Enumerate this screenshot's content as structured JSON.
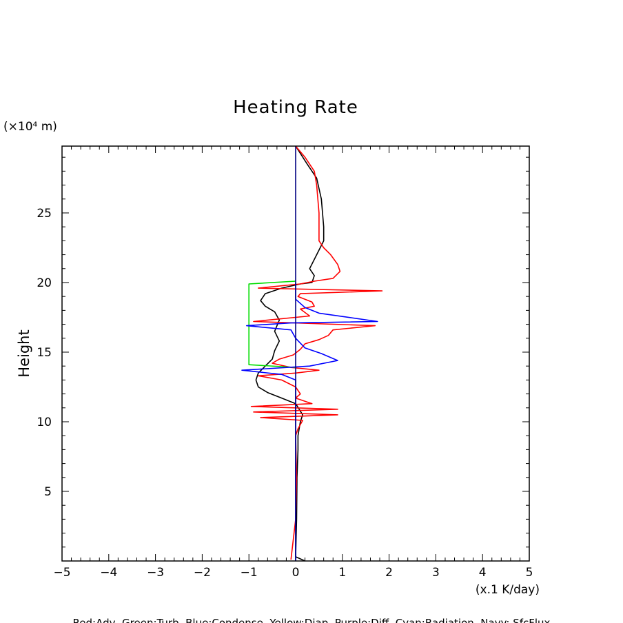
{
  "chart_data": {
    "type": "line",
    "title": "Heating Rate",
    "ylabel": "Height",
    "y_unit": "(×10⁴ m)",
    "x_unit": "(x.1 K/day)",
    "xlim": [
      -5,
      5
    ],
    "ylim": [
      0,
      29.8
    ],
    "x_ticks": [
      "−5",
      "−4",
      "−3",
      "−2",
      "−1",
      "0",
      "1",
      "2",
      "3",
      "4",
      "5"
    ],
    "y_ticks": [
      "5",
      "10",
      "15",
      "20",
      "25"
    ],
    "caption": "Red:Adv, Green:Turb, Blue:Condense, Yellow:Diap, Purple:Diff, Cyan:Radiation, Navy: SfcFlux",
    "colors": {
      "red": "#ff0000",
      "green": "#00dd00",
      "blue": "#0000ff",
      "navy": "#000080",
      "black": "#000000"
    },
    "series": [
      {
        "color": "black",
        "points": [
          [
            0.0,
            29.8
          ],
          [
            0.25,
            28.5
          ],
          [
            0.45,
            27.5
          ],
          [
            0.55,
            26
          ],
          [
            0.6,
            24
          ],
          [
            0.6,
            23
          ],
          [
            0.45,
            22
          ],
          [
            0.3,
            21
          ],
          [
            0.4,
            20.5
          ],
          [
            0.35,
            20
          ],
          [
            0.1,
            19.9
          ],
          [
            -0.3,
            19.6
          ],
          [
            -0.65,
            19.2
          ],
          [
            -0.75,
            18.7
          ],
          [
            -0.65,
            18.3
          ],
          [
            -0.45,
            17.9
          ],
          [
            -0.35,
            17.3
          ],
          [
            -0.45,
            16.5
          ],
          [
            -0.35,
            15.8
          ],
          [
            -0.45,
            15.1
          ],
          [
            -0.5,
            14.5
          ],
          [
            -0.65,
            14
          ],
          [
            -0.8,
            13.5
          ],
          [
            -0.85,
            13
          ],
          [
            -0.8,
            12.5
          ],
          [
            -0.6,
            12.1
          ],
          [
            -0.3,
            11.7
          ],
          [
            0.0,
            11.3
          ],
          [
            0.15,
            10.5
          ],
          [
            0.1,
            10
          ],
          [
            0.05,
            9
          ],
          [
            0.05,
            8
          ],
          [
            0.03,
            6
          ],
          [
            0.02,
            3
          ],
          [
            0.0,
            0.3
          ],
          [
            0.2,
            0.0
          ]
        ]
      },
      {
        "color": "red",
        "points": [
          [
            0.0,
            29.8
          ],
          [
            0.2,
            29
          ],
          [
            0.4,
            28
          ],
          [
            0.45,
            27
          ],
          [
            0.5,
            25
          ],
          [
            0.5,
            23
          ],
          [
            0.6,
            22.5
          ],
          [
            0.75,
            22
          ],
          [
            0.9,
            21.3
          ],
          [
            0.95,
            20.8
          ],
          [
            0.8,
            20.3
          ],
          [
            0.4,
            20.1
          ],
          [
            0.1,
            19.9
          ],
          [
            -0.8,
            19.6
          ],
          [
            1.85,
            19.4
          ],
          [
            0.1,
            19.2
          ],
          [
            0.05,
            19
          ],
          [
            0.35,
            18.6
          ],
          [
            0.4,
            18.3
          ],
          [
            0.1,
            18.1
          ],
          [
            0.3,
            17.6
          ],
          [
            -0.9,
            17.2
          ],
          [
            1.7,
            16.9
          ],
          [
            0.8,
            16.6
          ],
          [
            0.7,
            16.2
          ],
          [
            0.5,
            15.9
          ],
          [
            0.2,
            15.6
          ],
          [
            0.1,
            15.2
          ],
          [
            -0.05,
            14.8
          ],
          [
            -0.35,
            14.5
          ],
          [
            -0.5,
            14.2
          ],
          [
            -0.1,
            13.9
          ],
          [
            0.5,
            13.7
          ],
          [
            0.0,
            13.5
          ],
          [
            -0.8,
            13.3
          ],
          [
            -0.3,
            13.0
          ],
          [
            0.0,
            12.5
          ],
          [
            0.1,
            12.0
          ],
          [
            0.0,
            11.7
          ],
          [
            0.35,
            11.3
          ],
          [
            -0.95,
            11.1
          ],
          [
            0.9,
            10.9
          ],
          [
            -0.9,
            10.7
          ],
          [
            0.9,
            10.5
          ],
          [
            -0.75,
            10.3
          ],
          [
            0.15,
            10.1
          ],
          [
            0.05,
            9.5
          ],
          [
            0.0,
            9
          ],
          [
            0.02,
            6
          ],
          [
            0.0,
            3
          ],
          [
            -0.1,
            0.1
          ]
        ]
      },
      {
        "color": "green",
        "points": [
          [
            0.0,
            20.1
          ],
          [
            -1.0,
            19.9
          ],
          [
            -1.0,
            14.1
          ],
          [
            0.0,
            13.9
          ]
        ]
      },
      {
        "color": "blue",
        "points": [
          [
            0.0,
            20.0
          ],
          [
            0.0,
            19.2
          ],
          [
            0.0,
            18.8
          ],
          [
            0.2,
            18.2
          ],
          [
            0.5,
            17.8
          ],
          [
            1.75,
            17.2
          ],
          [
            -0.1,
            17.1
          ],
          [
            -1.05,
            16.9
          ],
          [
            -0.1,
            16.6
          ],
          [
            0.0,
            16.0
          ],
          [
            0.2,
            15.3
          ],
          [
            0.55,
            14.9
          ],
          [
            0.9,
            14.4
          ],
          [
            0.3,
            14.0
          ],
          [
            -1.15,
            13.7
          ],
          [
            -0.3,
            13.4
          ],
          [
            0.0,
            13.0
          ],
          [
            0.0,
            0.0
          ]
        ]
      },
      {
        "color": "navy",
        "points": [
          [
            0.0,
            29.8
          ],
          [
            0.0,
            0.0
          ]
        ]
      }
    ]
  }
}
